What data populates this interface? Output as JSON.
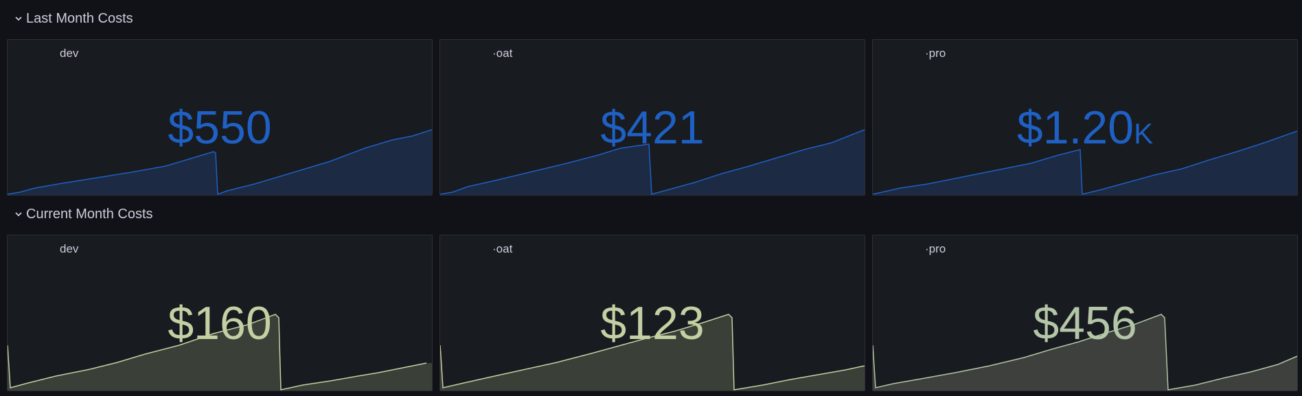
{
  "rows": [
    {
      "title": "Last Month Costs",
      "panels": [
        {
          "title": "dev",
          "value": "$550",
          "suffix": "",
          "color": "#1f60c4"
        },
        {
          "title": "·oat",
          "value": "$421",
          "suffix": "",
          "color": "#1f60c4"
        },
        {
          "title": "·pro",
          "value": "$1.20",
          "suffix": "K",
          "color": "#1f60c4"
        }
      ]
    },
    {
      "title": "Current Month Costs",
      "panels": [
        {
          "title": "dev",
          "value": "$160",
          "suffix": "",
          "color": "#c4d0a4"
        },
        {
          "title": "·oat",
          "value": "$123",
          "suffix": "",
          "color": "#c4d0a4"
        },
        {
          "title": "·pro",
          "value": "$456",
          "suffix": "",
          "color": "#b3c6a7"
        }
      ]
    }
  ],
  "colors": {
    "background": "#111217",
    "panel": "#181b1f",
    "blue_line": "#1f60c4",
    "blue_fill": "#1c2a44",
    "green_line": "#c4d0a4",
    "green_fill": "#3a3f38"
  }
}
